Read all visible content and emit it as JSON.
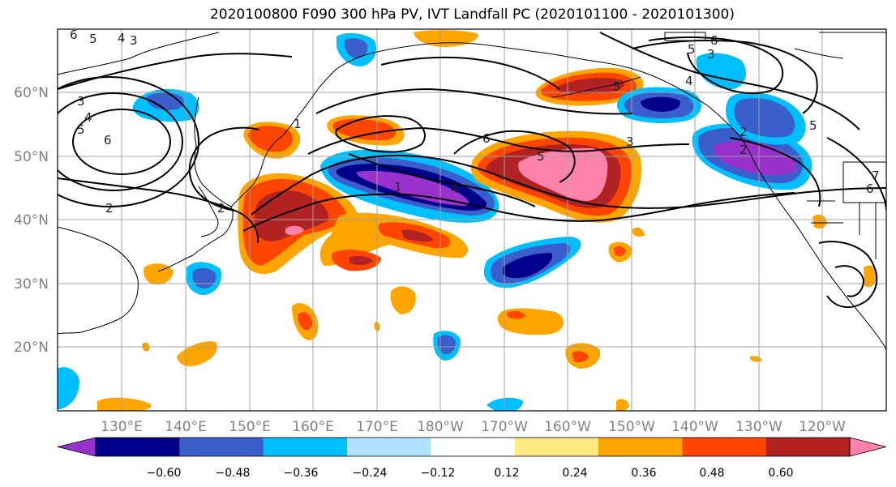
{
  "title": "2020100800 F090 300 hPa PV, IVT Landfall PC (2020101100 - 2020101300)",
  "map": {
    "lat_labels": [
      "60°N",
      "50°N",
      "40°N",
      "30°N",
      "20°N"
    ],
    "lon_labels": [
      "130°E",
      "140°E",
      "150°E",
      "160°E",
      "170°E",
      "180°W",
      "170°W",
      "160°W",
      "150°W",
      "140°W",
      "130°W",
      "120°W"
    ],
    "tick_label_color": "#808080",
    "gridline_color": "#a0a0a0",
    "contour_labels": [
      "6",
      "5",
      "4",
      "3",
      "3",
      "4",
      "5",
      "6",
      "2",
      "1",
      "2",
      "1",
      "4",
      "6",
      "5",
      "3",
      "5",
      "4",
      "5",
      "6",
      "3",
      "2",
      "2",
      "5",
      "7",
      "6"
    ]
  },
  "colorbar": {
    "tick_labels": [
      "−0.60",
      "−0.48",
      "−0.36",
      "−0.24",
      "−0.12",
      "0.12",
      "0.24",
      "0.36",
      "0.48",
      "0.60"
    ],
    "colors": [
      "#9932cc",
      "#00008b",
      "#3a5fcd",
      "#00bfff",
      "#b0e2ff",
      "#ffffff",
      "#ffe980",
      "#ffa500",
      "#ff4500",
      "#b22222",
      "#ff82ab"
    ]
  }
}
